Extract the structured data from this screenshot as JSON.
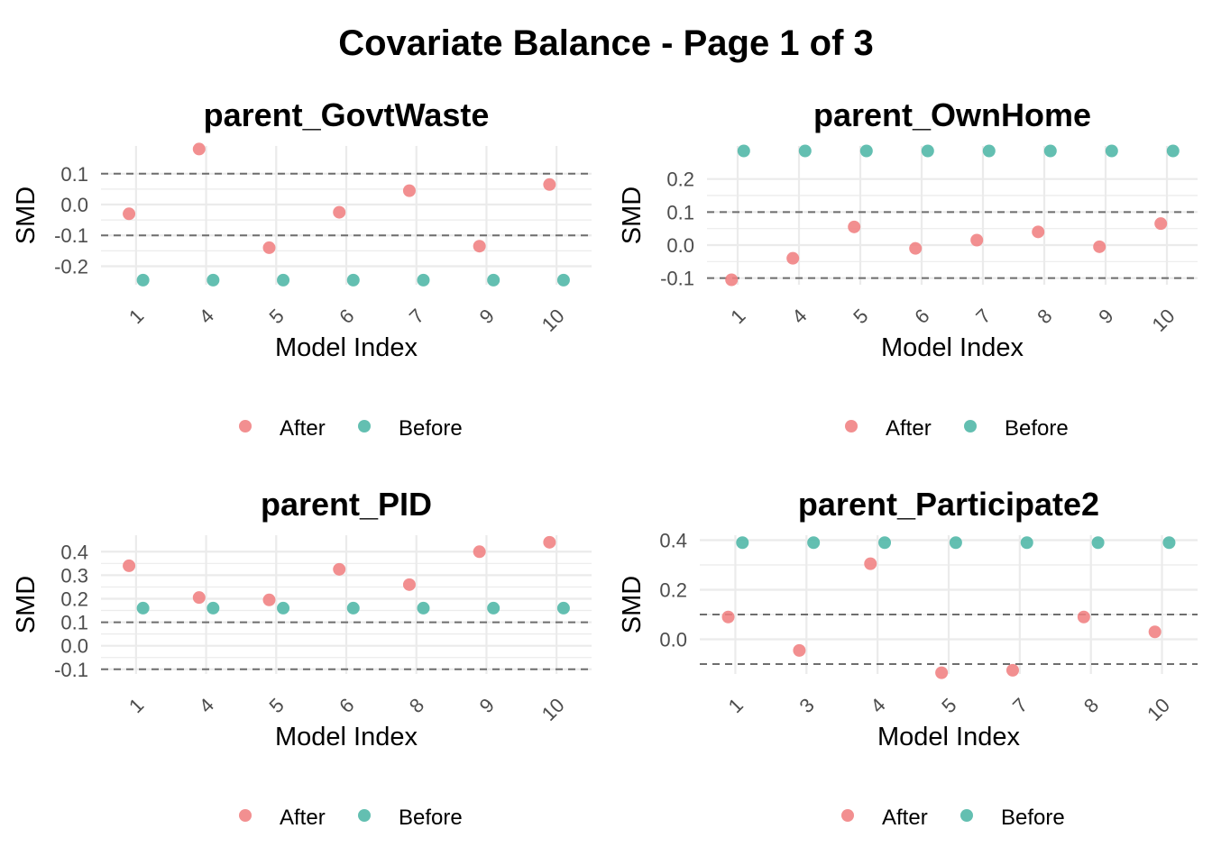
{
  "title": "Covariate Balance - Page 1 of 3",
  "colors": {
    "after": "#F07F81",
    "before": "#4DB6A6",
    "grid": "#EBEBEB",
    "threshold": "#6E6E6E"
  },
  "legend": {
    "after_label": "After",
    "before_label": "Before"
  },
  "chart_data": [
    {
      "type": "scatter",
      "title": "parent_GovtWaste",
      "xlabel": "Model Index",
      "ylabel": "SMD",
      "categories": [
        "1",
        "4",
        "5",
        "6",
        "7",
        "9",
        "10"
      ],
      "yticks": [
        -0.2,
        -0.1,
        0.0,
        0.1
      ],
      "ytick_labels": [
        "-0.2",
        "-0.1",
        "0.0",
        "0.1"
      ],
      "ylim": [
        -0.26,
        0.19
      ],
      "thresholds": [
        -0.1,
        0.1
      ],
      "series": [
        {
          "name": "After",
          "values": [
            -0.03,
            0.18,
            -0.14,
            -0.025,
            0.045,
            -0.135,
            0.065
          ]
        },
        {
          "name": "Before",
          "values": [
            -0.245,
            -0.245,
            -0.245,
            -0.245,
            -0.245,
            -0.245,
            -0.245
          ]
        }
      ]
    },
    {
      "type": "scatter",
      "title": "parent_OwnHome",
      "xlabel": "Model Index",
      "ylabel": "SMD",
      "categories": [
        "1",
        "4",
        "5",
        "6",
        "7",
        "8",
        "9",
        "10"
      ],
      "yticks": [
        -0.1,
        0.0,
        0.1,
        0.2
      ],
      "ytick_labels": [
        "-0.1",
        "0.0",
        "0.1",
        "0.2"
      ],
      "ylim": [
        -0.12,
        0.3
      ],
      "thresholds": [
        -0.1,
        0.1
      ],
      "series": [
        {
          "name": "After",
          "values": [
            -0.105,
            -0.04,
            0.055,
            -0.01,
            0.015,
            0.04,
            -0.005,
            0.065
          ]
        },
        {
          "name": "Before",
          "values": [
            0.285,
            0.285,
            0.285,
            0.285,
            0.285,
            0.285,
            0.285,
            0.285
          ]
        }
      ]
    },
    {
      "type": "scatter",
      "title": "parent_PID",
      "xlabel": "Model Index",
      "ylabel": "SMD",
      "categories": [
        "1",
        "4",
        "5",
        "6",
        "8",
        "9",
        "10"
      ],
      "yticks": [
        -0.1,
        0.0,
        0.1,
        0.2,
        0.3,
        0.4
      ],
      "ytick_labels": [
        "-0.1",
        "0.0",
        "0.1",
        "0.2",
        "0.3",
        "0.4"
      ],
      "ylim": [
        -0.12,
        0.47
      ],
      "thresholds": [
        -0.1,
        0.1
      ],
      "series": [
        {
          "name": "After",
          "values": [
            0.34,
            0.205,
            0.195,
            0.325,
            0.26,
            0.4,
            0.44
          ]
        },
        {
          "name": "Before",
          "values": [
            0.16,
            0.16,
            0.16,
            0.16,
            0.16,
            0.16,
            0.16
          ]
        }
      ]
    },
    {
      "type": "scatter",
      "title": "parent_Participate2",
      "xlabel": "Model Index",
      "ylabel": "SMD",
      "categories": [
        "1",
        "3",
        "4",
        "5",
        "7",
        "8",
        "10"
      ],
      "yticks": [
        0.0,
        0.2,
        0.4
      ],
      "ytick_labels": [
        "0.0",
        "0.2",
        "0.4"
      ],
      "ylim": [
        -0.14,
        0.42
      ],
      "thresholds": [
        -0.1,
        0.1
      ],
      "series": [
        {
          "name": "After",
          "values": [
            0.09,
            -0.045,
            0.305,
            -0.135,
            -0.125,
            0.09,
            0.03
          ]
        },
        {
          "name": "Before",
          "values": [
            0.39,
            0.39,
            0.39,
            0.39,
            0.39,
            0.39,
            0.39
          ]
        }
      ]
    }
  ]
}
